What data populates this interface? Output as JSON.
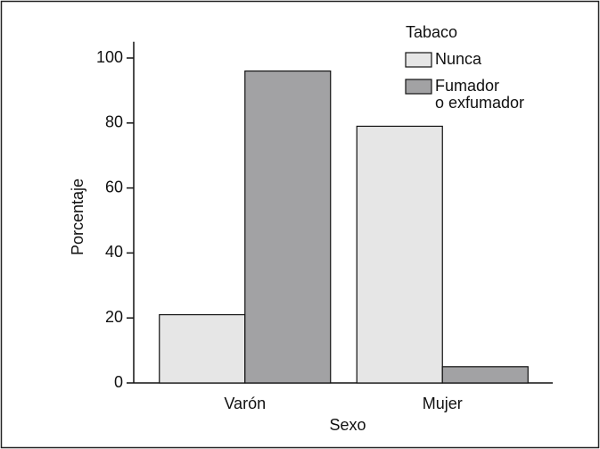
{
  "chart_data": {
    "type": "bar",
    "x_label": "Sexo",
    "y_label": "Porcentaje",
    "legend_title": "Tabaco",
    "categories": [
      "Varón",
      "Mujer"
    ],
    "series": [
      {
        "name": "Nunca",
        "color": "#e6e6e6",
        "values": [
          21,
          79
        ]
      },
      {
        "name": "Fumador\no exfumador",
        "color": "#a2a2a4",
        "values": [
          96,
          5
        ]
      }
    ],
    "ylim": [
      0,
      105
    ],
    "yticks": [
      0,
      20,
      40,
      60,
      80,
      100
    ],
    "legend_position": "upper right"
  }
}
